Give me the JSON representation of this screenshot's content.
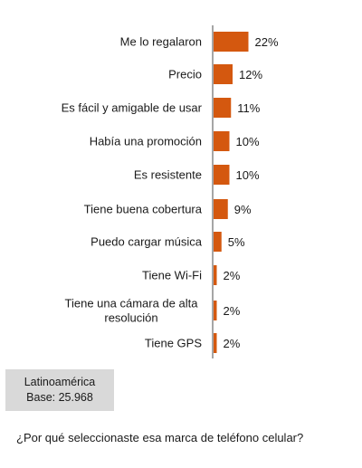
{
  "chart_data": {
    "type": "bar",
    "orientation": "horizontal",
    "categories": [
      "Me lo regalaron",
      "Precio",
      "Es fácil y amigable de usar",
      "Había una promoción",
      "Es resistente",
      "Tiene buena cobertura",
      "Puedo cargar música",
      "Tiene Wi-Fi",
      "Tiene una cámara de alta resolución",
      "Tiene GPS"
    ],
    "category_lines": [
      [
        "Me lo regalaron"
      ],
      [
        "Precio"
      ],
      [
        "Es fácil y amigable de usar"
      ],
      [
        "Había una promoción"
      ],
      [
        "Es resistente"
      ],
      [
        "Tiene buena cobertura"
      ],
      [
        "Puedo cargar música"
      ],
      [
        "Tiene Wi-Fi"
      ],
      [
        "Tiene una cámara de alta",
        "resolución"
      ],
      [
        "Tiene GPS"
      ]
    ],
    "values": [
      22,
      12,
      11,
      10,
      10,
      9,
      5,
      2,
      2,
      2
    ],
    "value_labels": [
      "22%",
      "12%",
      "11%",
      "10%",
      "10%",
      "9%",
      "5%",
      "2%",
      "2%",
      "2%"
    ],
    "unit": "%",
    "bar_color": "#d4580f",
    "axis_color": "#888888",
    "grid": false
  },
  "base_box": {
    "line1": "Latinoamérica",
    "line2": "Base: 25.968"
  },
  "question": "¿Por qué seleccionaste esa marca de teléfono celular?"
}
